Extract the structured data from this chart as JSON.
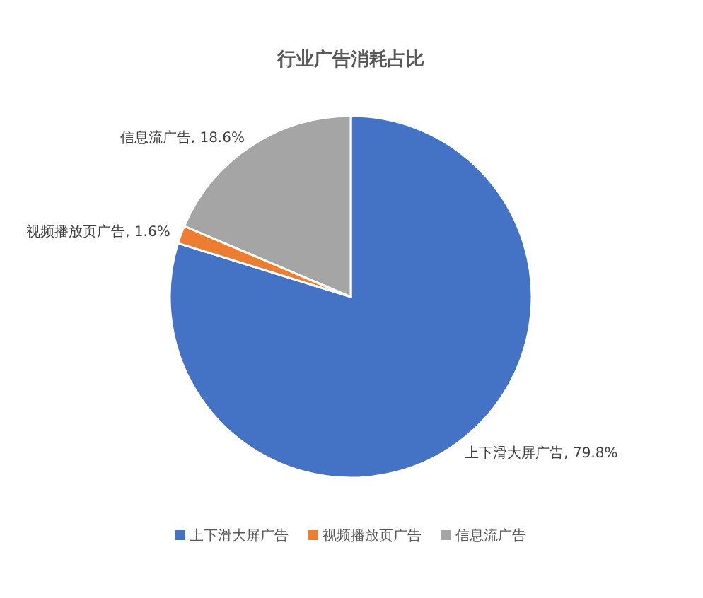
{
  "chart_data": {
    "type": "pie",
    "title": "行业广告消耗占比",
    "categories": [
      "上下滑大屏广告",
      "视频播放页广告",
      "信息流广告"
    ],
    "values": [
      79.8,
      1.6,
      18.6
    ],
    "value_labels": [
      ", 79.8%",
      ", 1.6%",
      ", 18.6%"
    ],
    "colors": [
      "#4472c4",
      "#ed7d31",
      "#a5a5a5"
    ],
    "legend": "bottom"
  }
}
